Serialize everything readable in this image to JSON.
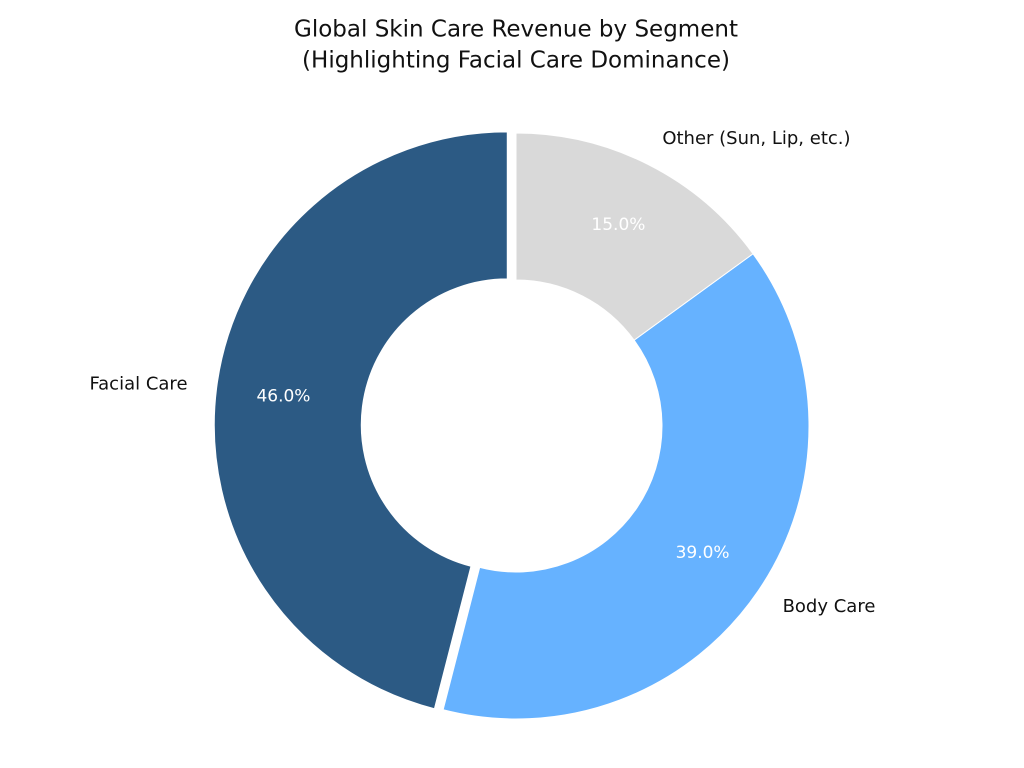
{
  "chart_data": {
    "type": "donut",
    "title": "Global Skin Care Revenue by Segment",
    "subtitle": "(Highlighting Facial Care Dominance)",
    "categories": [
      "Facial Care",
      "Body Care",
      "Other (Sun, Lip, etc.)"
    ],
    "values": [
      46,
      39,
      15
    ],
    "value_labels": [
      "46.0%",
      "39.0%",
      "15.0%"
    ],
    "colors": [
      "#2c5a84",
      "#66b2ff",
      "#d9d9d9"
    ],
    "explode": [
      0.03,
      0,
      0
    ]
  }
}
